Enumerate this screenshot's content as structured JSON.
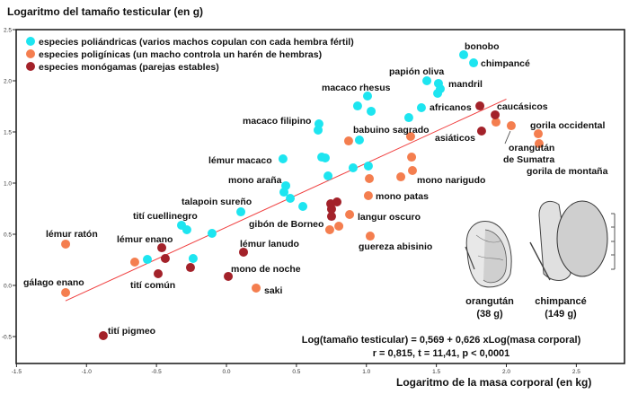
{
  "chart_data": {
    "type": "scatter",
    "title": "",
    "ylabel": "Logaritmo del tamaño testicular (en g)",
    "xlabel": "Logaritmo de la masa corporal (en kg)",
    "xlim": [
      -1.5,
      2.85
    ],
    "ylim": [
      -0.76,
      2.5
    ],
    "x_ticks": [
      "-1.5",
      "-1.0",
      "-0.5",
      "0.0",
      "0.5",
      "1.0",
      "1.5",
      "2.0",
      "2.5"
    ],
    "x_tick_values": [
      -1.5,
      -1.0,
      -0.5,
      0.0,
      0.5,
      1.0,
      1.5,
      2.0,
      2.5
    ],
    "y_ticks": [
      "2.5",
      "2.0",
      "1.5",
      "1.0",
      "0.5",
      "0.0",
      "-0.5"
    ],
    "y_tick_values": [
      2.5,
      2.0,
      1.5,
      1.0,
      0.5,
      0.0,
      -0.5
    ],
    "grid": false,
    "legend_position": "top-left",
    "series": [
      {
        "name": "especies poliándricas (varios machos copulan con cada hembra fértil)",
        "color": "#1de5f0",
        "points": [
          [
            1.695,
            2.254
          ],
          [
            1.766,
            2.175
          ],
          [
            1.432,
            2.0
          ],
          [
            1.515,
            1.974
          ],
          [
            1.528,
            1.921
          ],
          [
            1.509,
            1.877
          ],
          [
            1.008,
            1.851
          ],
          [
            0.937,
            1.754
          ],
          [
            1.034,
            1.702
          ],
          [
            1.393,
            1.737
          ],
          [
            1.303,
            1.64
          ],
          [
            0.661,
            1.579
          ],
          [
            0.655,
            1.518
          ],
          [
            0.95,
            1.421
          ],
          [
            0.404,
            1.237
          ],
          [
            0.681,
            1.254
          ],
          [
            0.706,
            1.246
          ],
          [
            0.726,
            1.07
          ],
          [
            0.905,
            1.149
          ],
          [
            1.014,
            1.167
          ],
          [
            0.424,
            0.974
          ],
          [
            0.411,
            0.912
          ],
          [
            0.456,
            0.851
          ],
          [
            0.546,
            0.772
          ],
          [
            0.103,
            0.719
          ],
          [
            -0.321,
            0.588
          ],
          [
            -0.283,
            0.544
          ],
          [
            -0.103,
            0.509
          ],
          [
            -0.565,
            0.254
          ],
          [
            -0.238,
            0.263
          ]
        ]
      },
      {
        "name": "especies poligínicas (un macho controla un harén de hembras)",
        "color": "#f47e4f",
        "points": [
          [
            1.323,
            1.254
          ],
          [
            1.021,
            1.044
          ],
          [
            1.246,
            1.061
          ],
          [
            1.329,
            1.123
          ],
          [
            1.014,
            0.877
          ],
          [
            0.88,
            0.693
          ],
          [
            0.738,
            0.544
          ],
          [
            0.803,
            0.579
          ],
          [
            1.027,
            0.482
          ],
          [
            1.316,
            1.456
          ],
          [
            0.873,
            1.412
          ],
          [
            1.926,
            1.596
          ],
          [
            2.035,
            1.561
          ],
          [
            2.228,
            1.482
          ],
          [
            2.234,
            1.386
          ],
          [
            -1.149,
            0.404
          ],
          [
            -1.149,
            -0.07
          ],
          [
            -0.655,
            0.228
          ],
          [
            0.212,
            -0.026
          ]
        ]
      },
      {
        "name": "especies monógamas (parejas estables)",
        "color": "#a3222a",
        "points": [
          [
            1.811,
            1.754
          ],
          [
            1.92,
            1.667
          ],
          [
            1.823,
            1.509
          ],
          [
            0.745,
            0.798
          ],
          [
            0.79,
            0.816
          ],
          [
            0.751,
            0.746
          ],
          [
            0.751,
            0.675
          ],
          [
            0.122,
            0.325
          ],
          [
            0.013,
            0.088
          ],
          [
            -0.462,
            0.368
          ],
          [
            -0.437,
            0.263
          ],
          [
            -0.488,
            0.114
          ],
          [
            -0.257,
            0.175
          ],
          [
            -0.88,
            -0.491
          ]
        ]
      }
    ],
    "regression": {
      "intercept": 0.569,
      "slope": 0.626,
      "x_range": [
        -1.15,
        2.0
      ],
      "color": "#f04040"
    },
    "annotations": [
      {
        "text": "bonobo",
        "x": 1.695,
        "y": 2.254
      },
      {
        "text": "chimpancé",
        "x": 1.766,
        "y": 2.175
      },
      {
        "text": "papión oliva",
        "x": 1.432,
        "y": 2.0
      },
      {
        "text": "mandril",
        "x": 1.528,
        "y": 1.921
      },
      {
        "text": "macaco rhesus",
        "x": 1.008,
        "y": 1.851
      },
      {
        "text": "africanos",
        "x": 1.811,
        "y": 1.754
      },
      {
        "text": "caucásicos",
        "x": 1.92,
        "y": 1.667
      },
      {
        "text": "macaco filipino",
        "x": 0.661,
        "y": 1.579
      },
      {
        "text": "babuino sagrado",
        "x": 0.95,
        "y": 1.421
      },
      {
        "text": "asiáticos",
        "x": 1.823,
        "y": 1.509
      },
      {
        "text": "orangután",
        "x": 2.035,
        "y": 1.561
      },
      {
        "text": "de Sumatra",
        "x": 2.035,
        "y": 1.561
      },
      {
        "text": "gorila occidental",
        "x": 2.228,
        "y": 1.482
      },
      {
        "text": "gorila de montaña",
        "x": 2.234,
        "y": 1.386
      },
      {
        "text": "lémur macaco",
        "x": 0.404,
        "y": 1.237
      },
      {
        "text": "mono araña",
        "x": 0.424,
        "y": 0.974
      },
      {
        "text": "mono narigudo",
        "x": 1.329,
        "y": 1.123
      },
      {
        "text": "talapoin sureño",
        "x": 0.103,
        "y": 0.719
      },
      {
        "text": "mono patas",
        "x": 1.014,
        "y": 0.877
      },
      {
        "text": "tití cuellinegro",
        "x": -0.321,
        "y": 0.588
      },
      {
        "text": "gibón de Borneo",
        "x": 0.751,
        "y": 0.675
      },
      {
        "text": "langur oscuro",
        "x": 0.88,
        "y": 0.693
      },
      {
        "text": "lémur ratón",
        "x": -1.149,
        "y": 0.404
      },
      {
        "text": "lémur enano",
        "x": -0.462,
        "y": 0.368
      },
      {
        "text": "lémur lanudo",
        "x": 0.122,
        "y": 0.325
      },
      {
        "text": "guereza abisinio",
        "x": 1.027,
        "y": 0.482
      },
      {
        "text": "mono de noche",
        "x": 0.013,
        "y": 0.088
      },
      {
        "text": "gálago enano",
        "x": -1.149,
        "y": -0.07
      },
      {
        "text": "tití común",
        "x": -0.437,
        "y": 0.263
      },
      {
        "text": "saki",
        "x": 0.212,
        "y": -0.026
      },
      {
        "text": "tití pigmeo",
        "x": -0.88,
        "y": -0.491
      }
    ],
    "equation_line1": "Log(tamaño testicular) = 0,569 + 0,626 xLog(masa corporal)",
    "equation_line2": "r = 0,815, t = 11,41, p < 0,0001",
    "illustration": {
      "left_caption": "orangután",
      "left_weight": "(38 g)",
      "right_caption": "chimpancé",
      "right_weight": "(149 g)"
    }
  }
}
